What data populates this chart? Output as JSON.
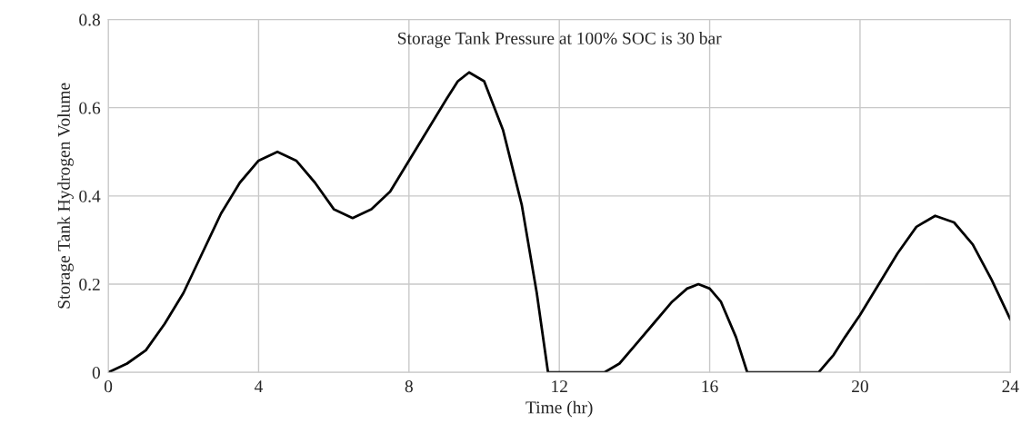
{
  "chart_data": {
    "type": "line",
    "xlabel": "Time (hr)",
    "ylabel": "Storage Tank Hydrogen Volume",
    "annotations": [
      "Storage Tank Pressure at 100% SOC is 30 bar"
    ],
    "series": [
      {
        "color": "#000000",
        "x": [
          0,
          0.5,
          1,
          1.5,
          2,
          2.5,
          3,
          3.5,
          4,
          4.5,
          5,
          5.5,
          6,
          6.5,
          7,
          7.5,
          8,
          8.5,
          9,
          9.3,
          9.6,
          10,
          10.5,
          11,
          11.4,
          11.7,
          13.2,
          13.6,
          14,
          14.5,
          15,
          15.4,
          15.7,
          16,
          16.3,
          16.7,
          17,
          18.9,
          19.3,
          19.6,
          20,
          20.5,
          21,
          21.5,
          22,
          22.5,
          23,
          23.5,
          24
        ],
        "values": [
          0,
          0.02,
          0.05,
          0.11,
          0.18,
          0.27,
          0.36,
          0.43,
          0.48,
          0.5,
          0.48,
          0.43,
          0.37,
          0.35,
          0.37,
          0.41,
          0.48,
          0.55,
          0.62,
          0.66,
          0.68,
          0.66,
          0.55,
          0.38,
          0.18,
          0,
          0,
          0.02,
          0.06,
          0.11,
          0.16,
          0.19,
          0.2,
          0.19,
          0.16,
          0.08,
          0,
          0,
          0.04,
          0.08,
          0.13,
          0.2,
          0.27,
          0.33,
          0.355,
          0.34,
          0.29,
          0.21,
          0.12
        ]
      }
    ],
    "xlim": [
      0,
      24
    ],
    "ylim": [
      0,
      0.8
    ],
    "xticks": [
      0,
      4,
      8,
      12,
      16,
      20,
      24
    ],
    "yticks": [
      0,
      0.2,
      0.4,
      0.6,
      0.8
    ],
    "grid": true,
    "marker": "none",
    "line_style": "solid"
  }
}
